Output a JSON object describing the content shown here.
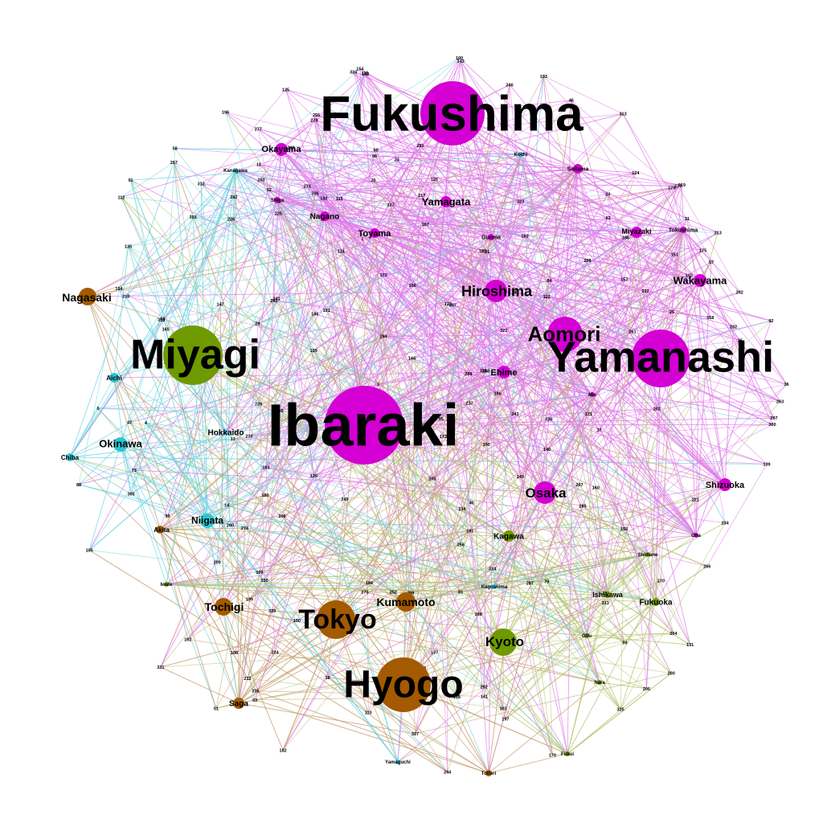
{
  "colors": {
    "magenta": "#d400d4",
    "magenta_edge": "#e07ae8",
    "olive": "#6e9a00",
    "olive_edge": "#b2c46e",
    "brown": "#a35a00",
    "brown_edge": "#c39a6a",
    "cyan": "#2ac6d6",
    "cyan_edge": "#6fd6e0"
  },
  "hub_nodes": [
    {
      "id": "fukushima",
      "label": "Fukushima",
      "group": "magenta",
      "size": "xl"
    },
    {
      "id": "ibaraki",
      "label": "Ibaraki",
      "group": "magenta",
      "size": "xl"
    },
    {
      "id": "yamanashi",
      "label": "Yamanashi",
      "group": "magenta",
      "size": "xl"
    },
    {
      "id": "miyagi",
      "label": "Miyagi",
      "group": "olive",
      "size": "xl"
    },
    {
      "id": "hyogo",
      "label": "Hyogo",
      "group": "brown",
      "size": "xl"
    },
    {
      "id": "tokyo",
      "label": "Tokyo",
      "group": "brown",
      "size": "l"
    },
    {
      "id": "aomori",
      "label": "Aomori",
      "group": "magenta",
      "size": "l"
    },
    {
      "id": "hiroshima",
      "label": "Hiroshima",
      "group": "magenta",
      "size": "m"
    },
    {
      "id": "osaka",
      "label": "Osaka",
      "group": "magenta",
      "size": "m"
    },
    {
      "id": "kyoto",
      "label": "Kyoto",
      "group": "olive",
      "size": "m"
    },
    {
      "id": "kumamoto",
      "label": "Kumamoto",
      "group": "brown",
      "size": "m"
    },
    {
      "id": "tochigi",
      "label": "Tochigi",
      "group": "brown",
      "size": "m"
    },
    {
      "id": "nagasaki",
      "label": "Nagasaki",
      "group": "brown",
      "size": "m"
    },
    {
      "id": "wakayama",
      "label": "Wakayama",
      "group": "magenta",
      "size": "s"
    },
    {
      "id": "yamagata",
      "label": "Yamagata",
      "group": "magenta",
      "size": "s"
    },
    {
      "id": "okayama",
      "label": "Okayama",
      "group": "magenta",
      "size": "s"
    },
    {
      "id": "okinawa",
      "label": "Okinawa",
      "group": "cyan",
      "size": "s"
    },
    {
      "id": "niigata",
      "label": "Niigata",
      "group": "cyan",
      "size": "s"
    },
    {
      "id": "shizuoka",
      "label": "Shizuoka",
      "group": "magenta",
      "size": "s"
    },
    {
      "id": "toyama",
      "label": "Toyama",
      "group": "magenta",
      "size": "s"
    },
    {
      "id": "nagano",
      "label": "Nagano",
      "group": "magenta",
      "size": "s"
    },
    {
      "id": "ehime",
      "label": "Ehime",
      "group": "magenta",
      "size": "s"
    },
    {
      "id": "kagawa",
      "label": "Kagawa",
      "group": "olive",
      "size": "s"
    },
    {
      "id": "ishikawa",
      "label": "Ishikawa",
      "group": "olive",
      "size": "xs"
    },
    {
      "id": "fukuoka",
      "label": "Fukuoka",
      "group": "olive",
      "size": "xs"
    },
    {
      "id": "saga",
      "label": "Saga",
      "group": "brown",
      "size": "s"
    },
    {
      "id": "hokkaido",
      "label": "Hokkaido",
      "group": "cyan",
      "size": "xs"
    },
    {
      "id": "miyazaki",
      "label": "Miyazaki",
      "group": "magenta",
      "size": "xs"
    },
    {
      "id": "aichi",
      "label": "Aichi",
      "group": "cyan",
      "size": "xs"
    },
    {
      "id": "chiba",
      "label": "Chiba",
      "group": "cyan",
      "size": "xs"
    },
    {
      "id": "akita",
      "label": "Akita",
      "group": "brown",
      "size": "xs"
    },
    {
      "id": "gunma",
      "label": "Gunma",
      "group": "magenta",
      "size": "xxs"
    },
    {
      "id": "saitama",
      "label": "Saitama",
      "group": "magenta",
      "size": "xxs"
    },
    {
      "id": "tokushima",
      "label": "Tokushima",
      "group": "magenta",
      "size": "xxs"
    },
    {
      "id": "kanagawa",
      "label": "Kanagawa",
      "group": "cyan",
      "size": "xxs"
    },
    {
      "id": "kagoshima",
      "label": "Kagoshima",
      "group": "cyan",
      "size": "xxs"
    },
    {
      "id": "yamaguchi",
      "label": "Yamaguchi",
      "group": "cyan",
      "size": "xxs"
    },
    {
      "id": "tottori",
      "label": "Tottori",
      "group": "brown",
      "size": "xxs"
    },
    {
      "id": "shiga",
      "label": "Shiga",
      "group": "magenta",
      "size": "xxs"
    },
    {
      "id": "kochi",
      "label": "Kochi",
      "group": "cyan",
      "size": "xxs"
    },
    {
      "id": "nara",
      "label": "Nara",
      "group": "olive",
      "size": "xxs"
    },
    {
      "id": "fukui",
      "label": "Fukui",
      "group": "olive",
      "size": "xxs"
    },
    {
      "id": "oita",
      "label": "Oita",
      "group": "magenta",
      "size": "xxs"
    },
    {
      "id": "iwate",
      "label": "Iwate",
      "group": "olive",
      "size": "xxs"
    },
    {
      "id": "gifu",
      "label": "Gifu",
      "group": "olive",
      "size": "xxs"
    },
    {
      "id": "shimane",
      "label": "Shimane",
      "group": "olive",
      "size": "xxs"
    },
    {
      "id": "mie",
      "label": "Mie",
      "group": "magenta",
      "size": "xxs"
    }
  ],
  "number_nodes": [
    "297",
    "184",
    "60",
    "63",
    "291",
    "290",
    "21",
    "162",
    "294",
    "271",
    "57",
    "313",
    "102",
    "282",
    "213",
    "309",
    "162",
    "287",
    "14",
    "25",
    "142",
    "160",
    "318",
    "180",
    "260",
    "230",
    "196",
    "229",
    "274",
    "199",
    "224",
    "262",
    "157",
    "24",
    "226",
    "0",
    "261",
    "1",
    "147",
    "150",
    "246",
    "204",
    "156",
    "40",
    "121",
    "145",
    "305",
    "206",
    "177",
    "319",
    "167",
    "37",
    "115",
    "241",
    "23",
    "114",
    "122",
    "321",
    "176",
    "300",
    "58",
    "139",
    "170",
    "210",
    "252",
    "292",
    "234",
    "279",
    "235",
    "131",
    "59",
    "288",
    "178",
    "263",
    "126",
    "327",
    "298",
    "137",
    "186",
    "108",
    "127",
    "20",
    "168",
    "36",
    "267",
    "39",
    "101",
    "47",
    "143",
    "210",
    "161",
    "52",
    "44",
    "217",
    "144",
    "18",
    "197",
    "275",
    "225",
    "266",
    "46",
    "151",
    "237",
    "316",
    "324",
    "140",
    "149",
    "173",
    "112",
    "256",
    "303",
    "298",
    "202",
    "277",
    "209",
    "207",
    "193",
    "325",
    "155",
    "141",
    "134",
    "110",
    "165",
    "243",
    "260",
    "95",
    "126",
    "244",
    "75",
    "105",
    "35",
    "203",
    "320",
    "4",
    "164",
    "11",
    "119",
    "313",
    "99",
    "92",
    "249",
    "51",
    "72",
    "232",
    "81",
    "123",
    "175",
    "312",
    "65",
    "63",
    "84",
    "306",
    "308",
    "29",
    "31",
    "212",
    "322",
    "182",
    "326",
    "128",
    "125",
    "214",
    "158",
    "191",
    "3",
    "82",
    "106",
    "316",
    "220",
    "135",
    "255",
    "159",
    "221",
    "158",
    "299",
    "301",
    "185",
    "311",
    "182",
    "259",
    "307",
    "232",
    "323",
    "124",
    "154",
    "146",
    "173",
    "200",
    "196",
    "285",
    "292",
    "171",
    "205",
    "73",
    "79",
    "13",
    "190",
    "270",
    "88",
    "96",
    "115",
    "91",
    "100"
  ]
}
